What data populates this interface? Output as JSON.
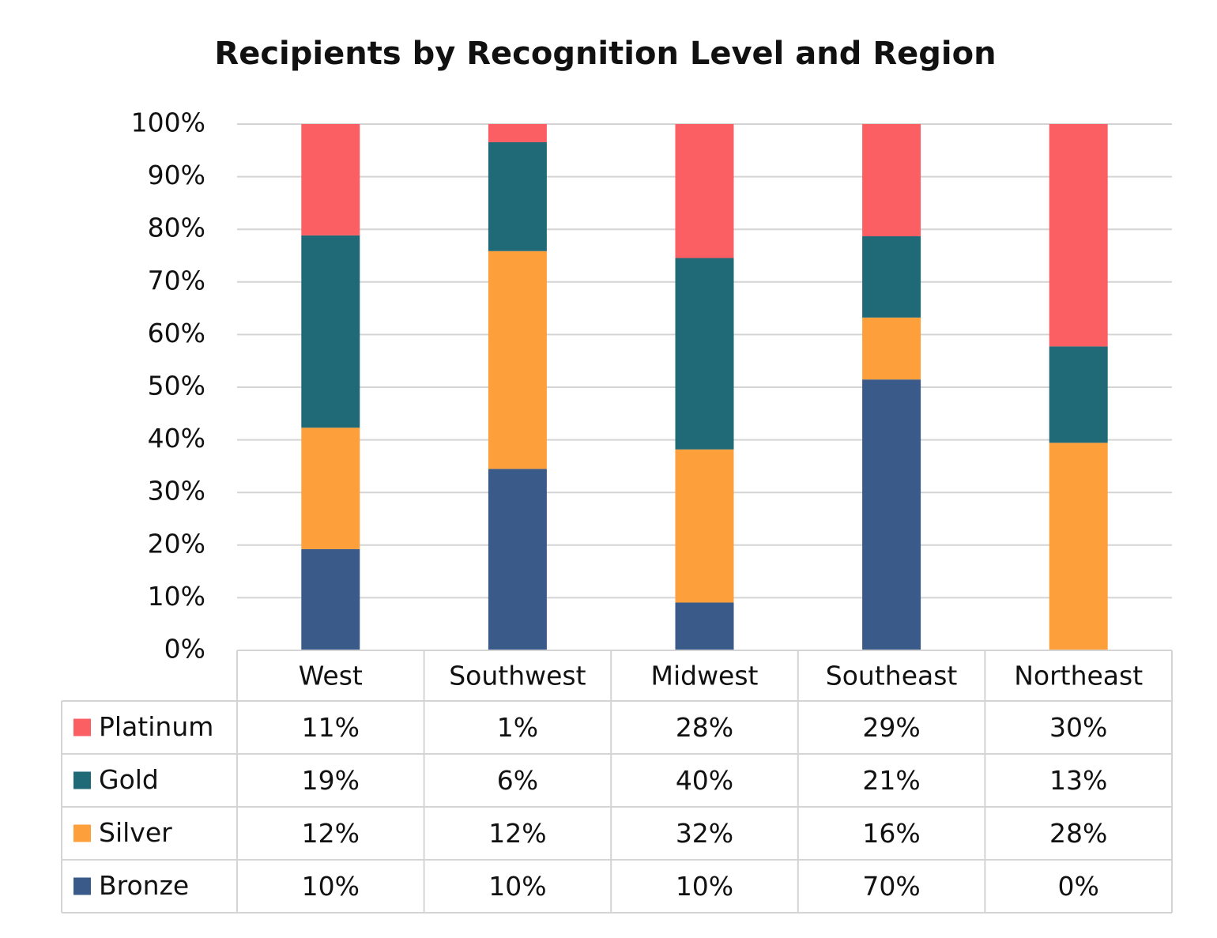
{
  "chart_data": {
    "type": "bar",
    "stacking": "percent",
    "title": "Recipients by Recognition Level and Region",
    "categories": [
      "West",
      "Southwest",
      "Midwest",
      "Southeast",
      "Northeast"
    ],
    "series": [
      {
        "name": "Platinum",
        "color": "#fc5f63",
        "values": [
          11,
          1,
          28,
          29,
          30
        ],
        "value_labels": [
          "11%",
          "1%",
          "28%",
          "29%",
          "30%"
        ]
      },
      {
        "name": "Gold",
        "color": "#206a78",
        "values": [
          19,
          6,
          40,
          21,
          13
        ],
        "value_labels": [
          "19%",
          "6%",
          "40%",
          "21%",
          "13%"
        ]
      },
      {
        "name": "Silver",
        "color": "#fd9f3a",
        "values": [
          12,
          12,
          32,
          16,
          28
        ],
        "value_labels": [
          "12%",
          "12%",
          "32%",
          "16%",
          "28%"
        ]
      },
      {
        "name": "Bronze",
        "color": "#3a5a89",
        "values": [
          10,
          10,
          10,
          70,
          0
        ],
        "value_labels": [
          "10%",
          "10%",
          "10%",
          "70%",
          "0%"
        ]
      }
    ],
    "ylim": [
      0,
      100
    ],
    "yticks": [
      {
        "value": 0,
        "label": "0%"
      },
      {
        "value": 10,
        "label": "10%"
      },
      {
        "value": 20,
        "label": "20%"
      },
      {
        "value": 30,
        "label": "30%"
      },
      {
        "value": 40,
        "label": "40%"
      },
      {
        "value": 50,
        "label": "50%"
      },
      {
        "value": 60,
        "label": "60%"
      },
      {
        "value": 70,
        "label": "70%"
      },
      {
        "value": 80,
        "label": "80%"
      },
      {
        "value": 90,
        "label": "90%"
      },
      {
        "value": 100,
        "label": "100%"
      }
    ],
    "grid": true,
    "data_table": true
  }
}
